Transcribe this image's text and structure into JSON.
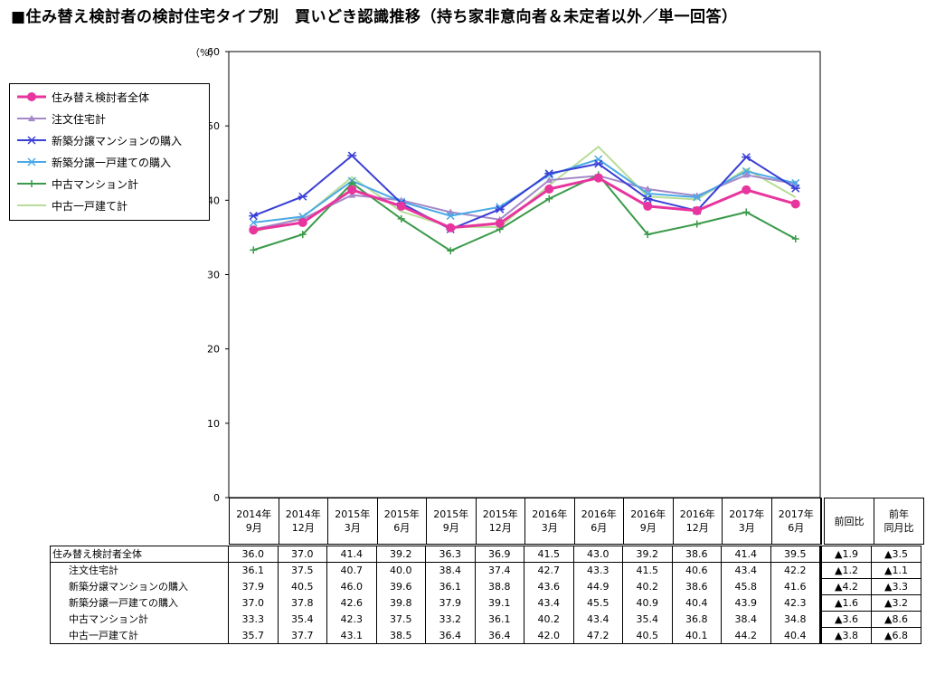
{
  "title": "■住み替え検討者の検討住宅タイプ別　買いどき認識推移（持ち家非意向者＆未定者以外／単一回答）",
  "y_unit": "（%）",
  "chart_data": {
    "type": "line",
    "categories": [
      "2014年9月",
      "2014年12月",
      "2015年3月",
      "2015年6月",
      "2015年9月",
      "2015年12月",
      "2016年3月",
      "2016年6月",
      "2016年9月",
      "2016年12月",
      "2017年3月",
      "2017年6月"
    ],
    "ylim": [
      0,
      60
    ],
    "yticks": [
      0,
      10,
      20,
      30,
      40,
      50,
      60
    ],
    "legend_position": "left",
    "series": [
      {
        "name": "住み替え検討者全体",
        "color": "#e8359d",
        "marker": "circle",
        "width": 3,
        "values": [
          36.0,
          37.0,
          41.4,
          39.2,
          36.3,
          36.9,
          41.5,
          43.0,
          39.2,
          38.6,
          41.4,
          39.5
        ],
        "prev": "▲1.9",
        "yoy": "▲3.5"
      },
      {
        "name": "注文住宅計",
        "color": "#a488c8",
        "marker": "triangle",
        "width": 2,
        "values": [
          36.1,
          37.5,
          40.7,
          40.0,
          38.4,
          37.4,
          42.7,
          43.3,
          41.5,
          40.6,
          43.4,
          42.2
        ],
        "prev": "▲1.2",
        "yoy": "▲1.1"
      },
      {
        "name": "新築分譲マンションの購入",
        "color": "#3a3fd6",
        "marker": "star",
        "width": 2,
        "values": [
          37.9,
          40.5,
          46.0,
          39.6,
          36.1,
          38.8,
          43.6,
          44.9,
          40.2,
          38.6,
          45.8,
          41.6
        ],
        "prev": "▲4.2",
        "yoy": "▲3.3"
      },
      {
        "name": "新築分譲一戸建ての購入",
        "color": "#4aa9e6",
        "marker": "x",
        "width": 2,
        "values": [
          37.0,
          37.8,
          42.6,
          39.8,
          37.9,
          39.1,
          43.4,
          45.5,
          40.9,
          40.4,
          43.9,
          42.3
        ],
        "prev": "▲1.6",
        "yoy": "▲3.2"
      },
      {
        "name": "中古マンション計",
        "color": "#3a9a4a",
        "marker": "plus",
        "width": 2,
        "values": [
          33.3,
          35.4,
          42.3,
          37.5,
          33.2,
          36.1,
          40.2,
          43.4,
          35.4,
          36.8,
          38.4,
          34.8
        ],
        "prev": "▲3.6",
        "yoy": "▲8.6"
      },
      {
        "name": "中古一戸建て計",
        "color": "#b8dd98",
        "marker": "none",
        "width": 2,
        "values": [
          35.7,
          37.7,
          43.1,
          38.5,
          36.4,
          36.4,
          42.0,
          47.2,
          40.5,
          40.1,
          44.2,
          40.4
        ],
        "prev": "▲3.8",
        "yoy": "▲6.8"
      }
    ]
  },
  "table": {
    "col_headers": [
      [
        "2014年",
        "9月"
      ],
      [
        "2014年",
        "12月"
      ],
      [
        "2015年",
        "3月"
      ],
      [
        "2015年",
        "6月"
      ],
      [
        "2015年",
        "9月"
      ],
      [
        "2015年",
        "12月"
      ],
      [
        "2016年",
        "3月"
      ],
      [
        "2016年",
        "6月"
      ],
      [
        "2016年",
        "9月"
      ],
      [
        "2016年",
        "12月"
      ],
      [
        "2017年",
        "3月"
      ],
      [
        "2017年",
        "6月"
      ]
    ],
    "prev_label": "前回比",
    "yoy_label_1": "前年",
    "yoy_label_2": "同月比"
  }
}
